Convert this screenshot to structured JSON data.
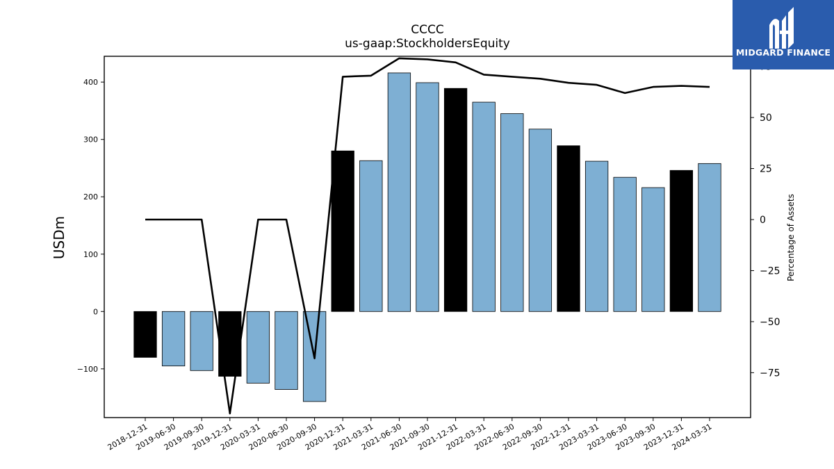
{
  "chart_data": {
    "type": "bar",
    "title": "CCCC",
    "subtitle": "us-gaap:StockholdersEquity",
    "ylabel": "USDm",
    "y2label": "Percentage of Assets",
    "ylim": [
      -185,
      445
    ],
    "y2lim": [
      -97,
      80
    ],
    "yticks": [
      -100,
      0,
      100,
      200,
      300,
      400
    ],
    "y2ticks": [
      -75,
      -50,
      -25,
      0,
      25,
      50,
      75
    ],
    "categories": [
      "2018-12-31",
      "2019-06-30",
      "2019-09-30",
      "2019-12-31",
      "2020-03-31",
      "2020-06-30",
      "2020-09-30",
      "2020-12-31",
      "2021-03-31",
      "2021-06-30",
      "2021-09-30",
      "2021-12-31",
      "2022-03-31",
      "2022-06-30",
      "2022-09-30",
      "2022-12-31",
      "2023-03-31",
      "2023-06-30",
      "2023-09-30",
      "2023-12-31",
      "2024-03-31"
    ],
    "values": [
      -80,
      -95,
      -103,
      -113,
      -125,
      -136,
      -157,
      280,
      263,
      416,
      399,
      389,
      365,
      345,
      318,
      289,
      262,
      234,
      216,
      246,
      258
    ],
    "year_end": [
      true,
      false,
      false,
      true,
      false,
      false,
      false,
      true,
      false,
      false,
      false,
      true,
      false,
      false,
      false,
      true,
      false,
      false,
      false,
      true,
      false
    ],
    "line_values": [
      0,
      0,
      0,
      -95,
      0,
      0,
      -68,
      70,
      70.5,
      79,
      78.5,
      77,
      71,
      70,
      69,
      67,
      66,
      62,
      65,
      65.5,
      65
    ],
    "colors": {
      "year_end": "#000000",
      "quarter": "#7eafd3",
      "line": "#000000"
    }
  },
  "logo": {
    "text": "MIDGARD FINANCE",
    "bg": "#2a5cad"
  }
}
